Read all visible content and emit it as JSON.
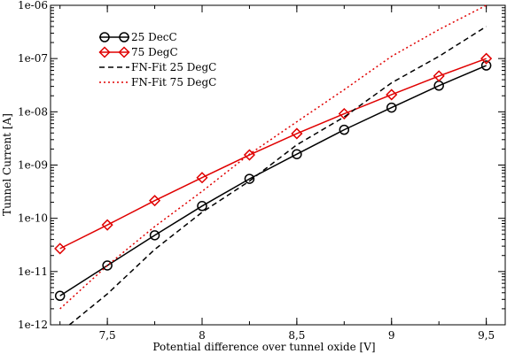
{
  "chart_data": {
    "type": "line",
    "xlabel": "Potential difference over tunnel oxide [V]",
    "ylabel": "Tunnel Current [A]",
    "xlim": [
      7.2,
      9.6
    ],
    "ylim": [
      1e-12,
      1e-06
    ],
    "yscale": "log",
    "x_ticks": [
      7.5,
      8,
      8.5,
      9,
      9.5
    ],
    "x_tick_labels": [
      "7,5",
      "8",
      "8,5",
      "9",
      "9,5"
    ],
    "y_ticks": [
      1e-12,
      1e-11,
      1e-10,
      1e-09,
      1e-08,
      1e-07,
      1e-06
    ],
    "y_tick_labels": [
      "1e-12",
      "1e-11",
      "1e-10",
      "1e-09",
      "1e-08",
      "1e-07",
      "1e-06"
    ],
    "grid": false,
    "legend_position": "top-left",
    "series": [
      {
        "name": "25 DecC",
        "style": "line-circle",
        "color": "#000000",
        "x": [
          7.25,
          7.5,
          7.75,
          8.0,
          8.25,
          8.5,
          8.75,
          9.0,
          9.25,
          9.5
        ],
        "y": [
          3.5e-12,
          1.3e-11,
          4.8e-11,
          1.7e-10,
          5.5e-10,
          1.6e-09,
          4.6e-09,
          1.2e-08,
          3.1e-08,
          7.4e-08
        ]
      },
      {
        "name": "75 DegC",
        "style": "line-diamond",
        "color": "#e00000",
        "x": [
          7.25,
          7.5,
          7.75,
          8.0,
          8.25,
          8.5,
          8.75,
          9.0,
          9.25,
          9.5
        ],
        "y": [
          2.7e-11,
          7.5e-11,
          2.15e-10,
          5.8e-10,
          1.55e-09,
          3.9e-09,
          9.2e-09,
          2.1e-08,
          4.7e-08,
          1e-07
        ]
      },
      {
        "name": "FN-Fit 25 DegC",
        "style": "dashed",
        "color": "#000000",
        "x": [
          7.3,
          7.5,
          7.75,
          8.0,
          8.25,
          8.5,
          8.75,
          9.0,
          9.25,
          9.5
        ],
        "y": [
          1e-12,
          3.8e-12,
          2.6e-11,
          1.3e-10,
          5e-10,
          2.4e-09,
          8e-09,
          3.5e-08,
          1.1e-07,
          4e-07
        ]
      },
      {
        "name": "FN-Fit 75 DegC",
        "style": "dotted",
        "color": "#e00000",
        "x": [
          7.25,
          7.5,
          7.75,
          8.0,
          8.25,
          8.5,
          8.75,
          9.0,
          9.25,
          9.5
        ],
        "y": [
          2e-12,
          1.3e-11,
          7e-11,
          3.2e-10,
          1.6e-09,
          6.5e-09,
          2.6e-08,
          1.1e-07,
          3.5e-07,
          1e-06
        ]
      }
    ]
  }
}
